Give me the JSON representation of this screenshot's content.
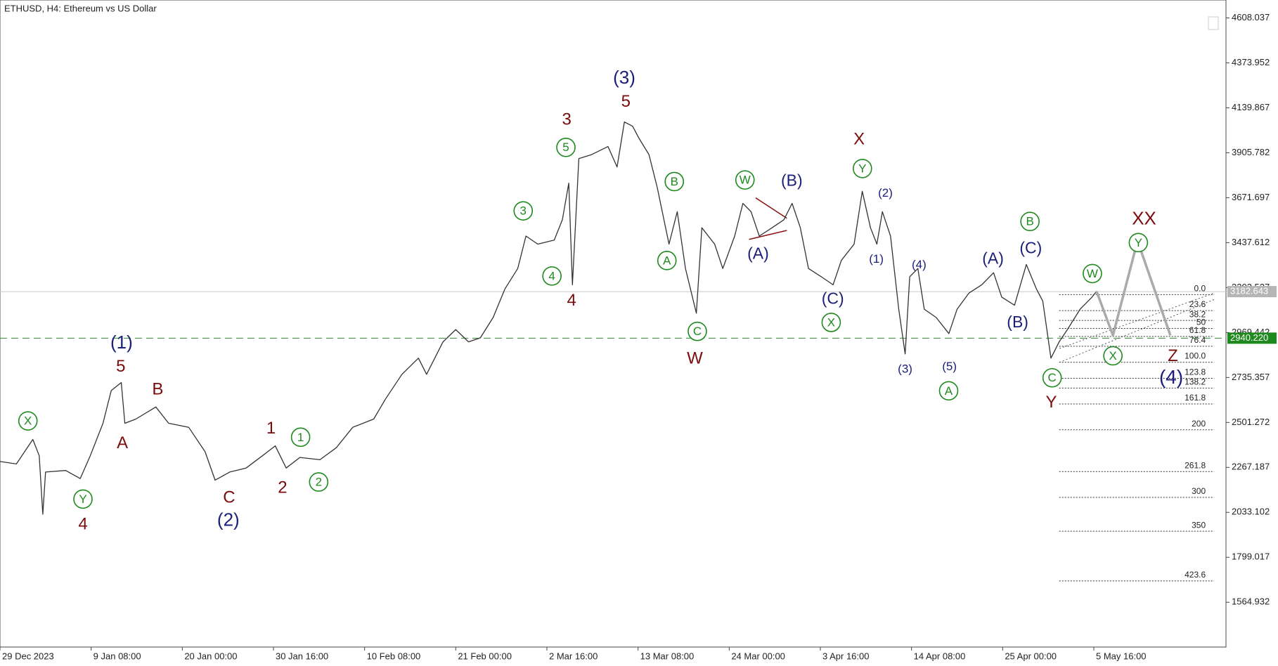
{
  "chart_data": {
    "type": "line",
    "title": "ETHUSD, H4:  Ethereum vs US Dollar",
    "xlim": [
      0,
      13.45
    ],
    "xticks": [
      {
        "value": 0,
        "label": "29 Dec 2023"
      },
      {
        "value": 1,
        "label": "9 Jan 08:00"
      },
      {
        "value": 2,
        "label": "20 Jan 00:00"
      },
      {
        "value": 3,
        "label": "30 Jan 16:00"
      },
      {
        "value": 4,
        "label": "10 Feb 08:00"
      },
      {
        "value": 5,
        "label": "21 Feb 00:00"
      },
      {
        "value": 6,
        "label": "2 Mar 16:00"
      },
      {
        "value": 7,
        "label": "13 Mar 08:00"
      },
      {
        "value": 8,
        "label": "24 Mar 00:00"
      },
      {
        "value": 9,
        "label": "3 Apr 16:00"
      },
      {
        "value": 10,
        "label": "14 Apr 08:00"
      },
      {
        "value": 11,
        "label": "25 Apr 00:00"
      },
      {
        "value": 12,
        "label": "5 May 16:00"
      }
    ],
    "ylim": [
      1331.7,
      4701.3
    ],
    "yticks": [
      4608.037,
      4373.952,
      4139.867,
      3905.782,
      3671.697,
      3437.612,
      3203.527,
      2969.442,
      2735.357,
      2501.272,
      2267.187,
      2033.102,
      1799.017,
      1564.932
    ],
    "series": [
      {
        "color": "#333333",
        "x": [
          0,
          0.18,
          0.36,
          0.43,
          0.47,
          0.5,
          0.72,
          0.88,
          0.99,
          1.13,
          1.22,
          1.33,
          1.37,
          1.49,
          1.71,
          1.85,
          2.07,
          2.25,
          2.36,
          2.52,
          2.7,
          2.88,
          3.02,
          3.14,
          3.29,
          3.51,
          3.69,
          3.87,
          4.1,
          4.23,
          4.41,
          4.59,
          4.68,
          4.86,
          5,
          5.14,
          5.27,
          5.41,
          5.54,
          5.68,
          5.77,
          5.9,
          6.08,
          6.17,
          6.24,
          6.28,
          6.35,
          6.49,
          6.67,
          6.77,
          6.85,
          6.94,
          7.01,
          7.12,
          7.21,
          7.34,
          7.43,
          7.52,
          7.64,
          7.7,
          7.84,
          7.93,
          8.06,
          8.15,
          8.24,
          8.33,
          8.47,
          8.6,
          8.69,
          8.78,
          8.87,
          9.01,
          9.14,
          9.23,
          9.37,
          9.46,
          9.55,
          9.62,
          9.68,
          9.77,
          9.86,
          9.93,
          9.98,
          10.07,
          10.14,
          10.27,
          10.41,
          10.5,
          10.63,
          10.77,
          10.9,
          10.99,
          11.13,
          11.26,
          11.37,
          11.44,
          11.53,
          11.62,
          11.71,
          11.85,
          11.98,
          12.03
        ],
        "values": [
          2298,
          2285,
          2413,
          2328,
          2023,
          2243,
          2251,
          2209,
          2328,
          2497,
          2667,
          2709,
          2497,
          2519,
          2582,
          2497,
          2476,
          2349,
          2201,
          2243,
          2264,
          2328,
          2379,
          2264,
          2319,
          2307,
          2370,
          2476,
          2519,
          2624,
          2752,
          2836,
          2752,
          2921,
          2985,
          2921,
          2942,
          3048,
          3197,
          3303,
          3472,
          3430,
          3451,
          3557,
          3748,
          3218,
          3875,
          3896,
          3938,
          3832,
          4066,
          4044,
          3981,
          3896,
          3726,
          3430,
          3599,
          3303,
          3070,
          3515,
          3430,
          3303,
          3472,
          3642,
          3599,
          3472,
          3515,
          3557,
          3642,
          3515,
          3303,
          3260,
          3218,
          3345,
          3430,
          3705,
          3515,
          3430,
          3599,
          3472,
          3091,
          2858,
          3260,
          3303,
          3091,
          3048,
          2964,
          3091,
          3175,
          3218,
          3281,
          3154,
          3112,
          3324,
          3197,
          3133,
          2836,
          2921,
          2985,
          3091,
          3154,
          3184
        ]
      },
      {
        "color": "#aaaaaa",
        "x": [
          12.03,
          12.21,
          12.48,
          12.84
        ],
        "values": [
          3184,
          2955,
          3447,
          2955
        ]
      }
    ],
    "last_price": 3182.643,
    "level_price": {
      "value": 2940.22,
      "label": "2940.220"
    },
    "fib": {
      "start": 3167,
      "end": 2815,
      "x": [
        11.62,
        13.32
      ],
      "levels": [
        {
          "value": 0,
          "label": "0.0"
        },
        23.6,
        38.2,
        50,
        61.8,
        76.4,
        {
          "value": 100,
          "label": "100.0"
        },
        123.8,
        138.2,
        161.8,
        200,
        261.8,
        300,
        350,
        423.6
      ]
    },
    "annotations": [
      {
        "text": "(1)",
        "color": "#1b1f7a"
      },
      {
        "text": "5",
        "color": "#7a0c0c"
      },
      {
        "text": "B",
        "color": "#7a0c0c"
      },
      {
        "text": "A",
        "color": "#7a0c0c"
      },
      {
        "text": "X",
        "color": "#1e8a1e",
        "circled": true
      },
      {
        "text": "Y",
        "color": "#1e8a1e",
        "circled": true
      },
      {
        "text": "4",
        "color": "#7a0c0c"
      },
      {
        "text": "C",
        "color": "#7a0c0c"
      },
      {
        "text": "(2)",
        "color": "#1b1f7a"
      },
      {
        "text": "1",
        "color": "#7a0c0c"
      },
      {
        "text": "1",
        "color": "#1e8a1e",
        "circled": true
      },
      {
        "text": "2",
        "color": "#7a0c0c"
      },
      {
        "text": "2",
        "color": "#1e8a1e",
        "circled": true
      },
      {
        "text": "3",
        "color": "#1e8a1e",
        "circled": true
      },
      {
        "text": "4",
        "color": "#1e8a1e",
        "circled": true
      },
      {
        "text": "4",
        "color": "#7a0c0c"
      },
      {
        "text": "5",
        "color": "#1e8a1e",
        "circled": true
      },
      {
        "text": "3",
        "color": "#7a0c0c"
      },
      {
        "text": "(3)",
        "color": "#1b1f7a"
      },
      {
        "text": "5",
        "color": "#7a0c0c"
      },
      {
        "text": "B",
        "color": "#1e8a1e",
        "circled": true
      },
      {
        "text": "A",
        "color": "#1e8a1e",
        "circled": true
      },
      {
        "text": "C",
        "color": "#1e8a1e",
        "circled": true
      },
      {
        "text": "W",
        "color": "#7a0c0c"
      },
      {
        "text": "W",
        "color": "#1e8a1e",
        "circled": true
      },
      {
        "text": "(B)",
        "color": "#1b1f7a"
      },
      {
        "text": "(A)",
        "color": "#1b1f7a"
      },
      {
        "text": "X",
        "color": "#7a0c0c"
      },
      {
        "text": "Y",
        "color": "#1e8a1e",
        "circled": true
      },
      {
        "text": "(2)",
        "color": "#1b1f7a"
      },
      {
        "text": "(1)",
        "color": "#1b1f7a"
      },
      {
        "text": "(C)",
        "color": "#1b1f7a"
      },
      {
        "text": "X",
        "color": "#1e8a1e",
        "circled": true
      },
      {
        "text": "(4)",
        "color": "#1b1f7a"
      },
      {
        "text": "(3)",
        "color": "#1b1f7a"
      },
      {
        "text": "(5)",
        "color": "#1b1f7a"
      },
      {
        "text": "A",
        "color": "#1e8a1e",
        "circled": true
      },
      {
        "text": "(A)",
        "color": "#1b1f7a"
      },
      {
        "text": "(B)",
        "color": "#1b1f7a"
      },
      {
        "text": "(C)",
        "color": "#1b1f7a"
      },
      {
        "text": "B",
        "color": "#1e8a1e",
        "circled": true
      },
      {
        "text": "C",
        "color": "#1e8a1e",
        "circled": true
      },
      {
        "text": "Y",
        "color": "#7a0c0c"
      },
      {
        "text": "W",
        "color": "#1e8a1e",
        "circled": true
      },
      {
        "text": "XX",
        "color": "#7a0c0c"
      },
      {
        "text": "Y",
        "color": "#1e8a1e",
        "circled": true
      },
      {
        "text": "X",
        "color": "#1e8a1e",
        "circled": true
      },
      {
        "text": "Z",
        "color": "#7a0c0c"
      },
      {
        "text": "(4)",
        "color": "#1b1f7a"
      }
    ]
  }
}
